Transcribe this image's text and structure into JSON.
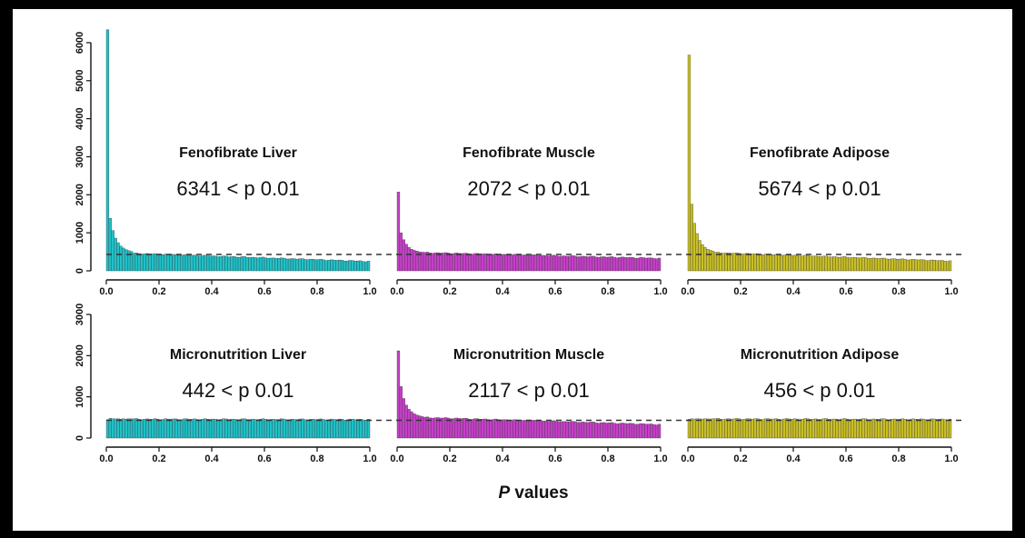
{
  "chart_data": {
    "type": "bar",
    "xlabel_italic": "P",
    "xlabel_rest": " values",
    "x_ticks": [
      "0.0",
      "0.2",
      "0.4",
      "0.6",
      "0.8",
      "1.0"
    ],
    "xlim": [
      0,
      1
    ],
    "bin_width": 0.01,
    "reference_line": "dashed",
    "colors": {
      "cyan": "#1fc2c8",
      "magenta": "#c63fc9",
      "yellow": "#c9bf26"
    },
    "rows": [
      {
        "ylim": [
          0,
          6500
        ],
        "y_ticks": [
          "0",
          "1000",
          "2000",
          "3000",
          "4000",
          "5000",
          "6000"
        ],
        "y_tick_values": [
          0,
          1000,
          2000,
          3000,
          4000,
          5000,
          6000
        ],
        "reference_value": 430
      },
      {
        "ylim": [
          0,
          3000
        ],
        "y_ticks": [
          "0",
          "1000",
          "2000",
          "3000"
        ],
        "y_tick_values": [
          0,
          1000,
          2000,
          3000
        ],
        "reference_value": 430
      }
    ],
    "panels": [
      {
        "title": "Fenofibrate Liver",
        "count_label": "6341 < p 0.01",
        "color": "cyan",
        "row": 0,
        "col": 0,
        "first_bins": [
          6341,
          1380,
          1060,
          860,
          740,
          650,
          600,
          560,
          530,
          510
        ],
        "tail": [
          460,
          250
        ]
      },
      {
        "title": "Fenofibrate Muscle",
        "count_label": "2072 < p 0.01",
        "color": "magenta",
        "row": 0,
        "col": 1,
        "first_bins": [
          2072,
          1000,
          820,
          700,
          620,
          570,
          540,
          520,
          500,
          490
        ],
        "tail": [
          480,
          330
        ]
      },
      {
        "title": "Fenofibrate Adipose",
        "count_label": "5674 < p 0.01",
        "color": "yellow",
        "row": 0,
        "col": 2,
        "first_bins": [
          5674,
          1750,
          1250,
          980,
          800,
          690,
          620,
          570,
          540,
          515
        ],
        "tail": [
          480,
          260
        ]
      },
      {
        "title": "Micronutrition Liver",
        "count_label": "442 < p 0.01",
        "color": "cyan",
        "row": 1,
        "col": 0,
        "first_bins": [
          442,
          480,
          470,
          465,
          470,
          460,
          468,
          462,
          470,
          465
        ],
        "tail": [
          460,
          450
        ]
      },
      {
        "title": "Micronutrition Muscle",
        "count_label": "2117 < p 0.01",
        "color": "magenta",
        "row": 1,
        "col": 1,
        "first_bins": [
          2117,
          1250,
          960,
          800,
          700,
          640,
          590,
          560,
          540,
          520
        ],
        "tail": [
          500,
          330
        ]
      },
      {
        "title": "Micronutrition Adipose",
        "count_label": "456 < p 0.01",
        "color": "yellow",
        "row": 1,
        "col": 2,
        "first_bins": [
          456,
          470,
          462,
          470,
          465,
          460,
          470,
          465,
          462,
          468
        ],
        "tail": [
          465,
          455
        ]
      }
    ]
  }
}
